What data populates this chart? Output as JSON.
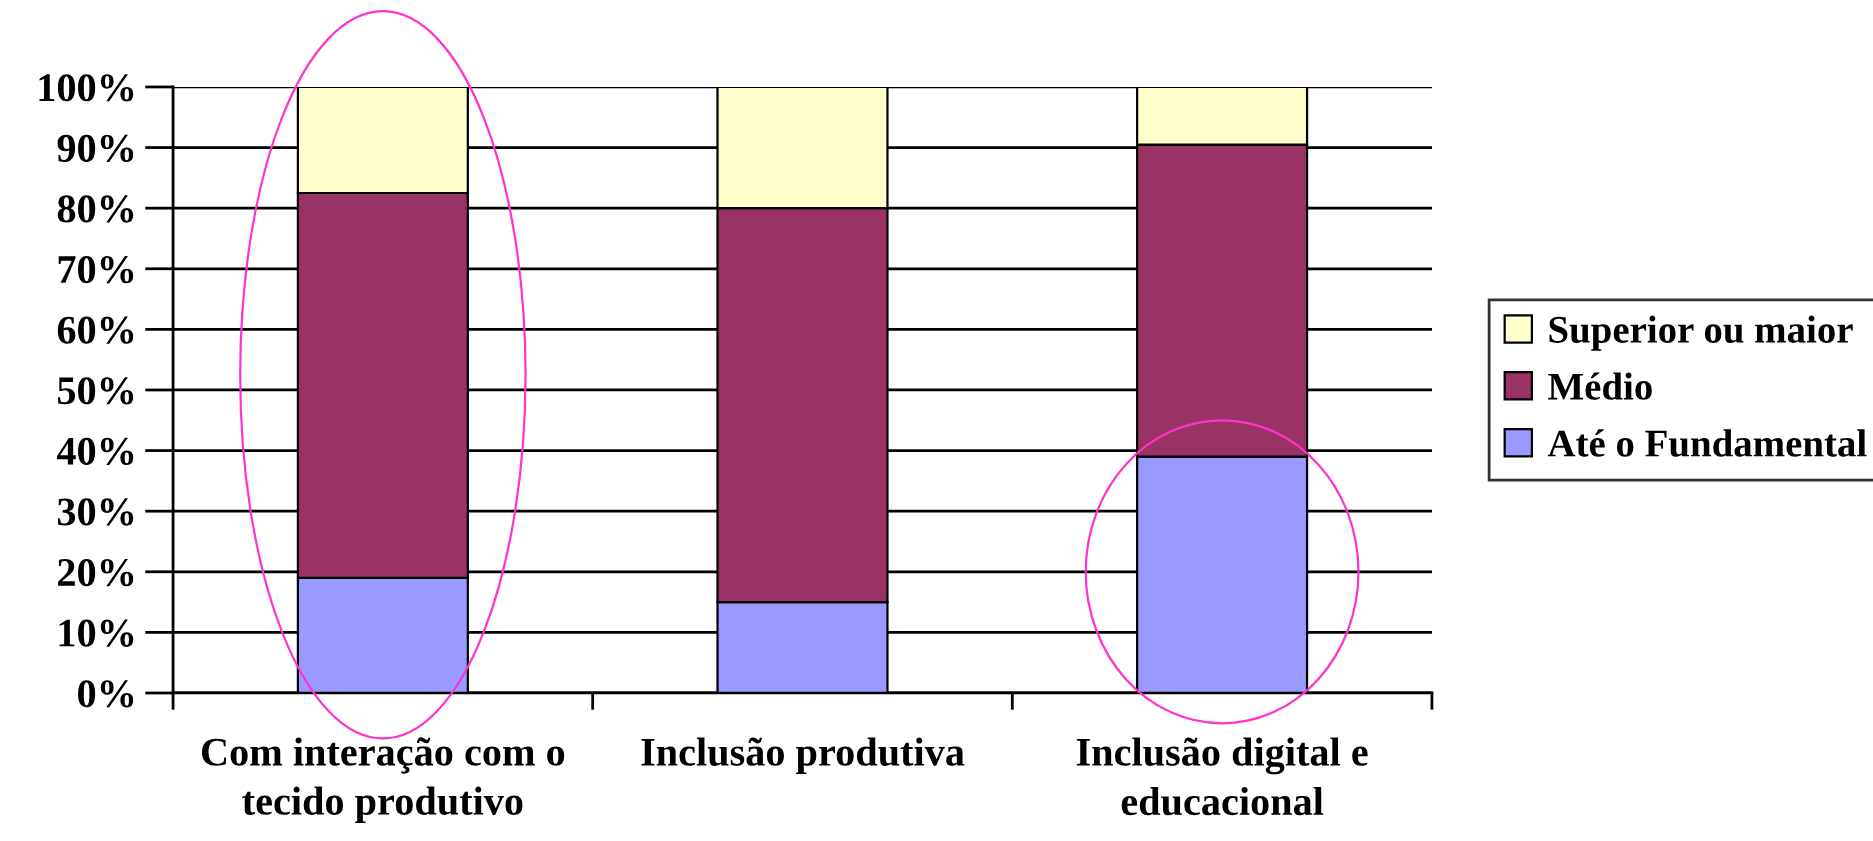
{
  "chart_data": {
    "type": "bar",
    "stacked": true,
    "categories": [
      "Com interação com o\ntecido produtivo",
      "Inclusão produtiva",
      "Inclusão digital e\neducacional"
    ],
    "series": [
      {
        "name": "Até o Fundamental",
        "color": "#9999ff",
        "values": [
          19,
          15,
          39
        ]
      },
      {
        "name": "Médio",
        "color": "#993366",
        "values": [
          63.5,
          65,
          51.5
        ]
      },
      {
        "name": "Superior ou maior",
        "color": "#ffffcc",
        "values": [
          17.5,
          20,
          9.5
        ]
      }
    ],
    "ylim": [
      0,
      100
    ],
    "yticks": [
      {
        "value": 0,
        "label": "0%"
      },
      {
        "value": 10,
        "label": "10%"
      },
      {
        "value": 20,
        "label": "20%"
      },
      {
        "value": 30,
        "label": "30%"
      },
      {
        "value": 40,
        "label": "40%"
      },
      {
        "value": 50,
        "label": "50%"
      },
      {
        "value": 60,
        "label": "60%"
      },
      {
        "value": 70,
        "label": "70%"
      },
      {
        "value": 80,
        "label": "80%"
      },
      {
        "value": 90,
        "label": "90%"
      },
      {
        "value": 100,
        "label": "100%"
      }
    ],
    "grid": "y",
    "legend": "right"
  }
}
